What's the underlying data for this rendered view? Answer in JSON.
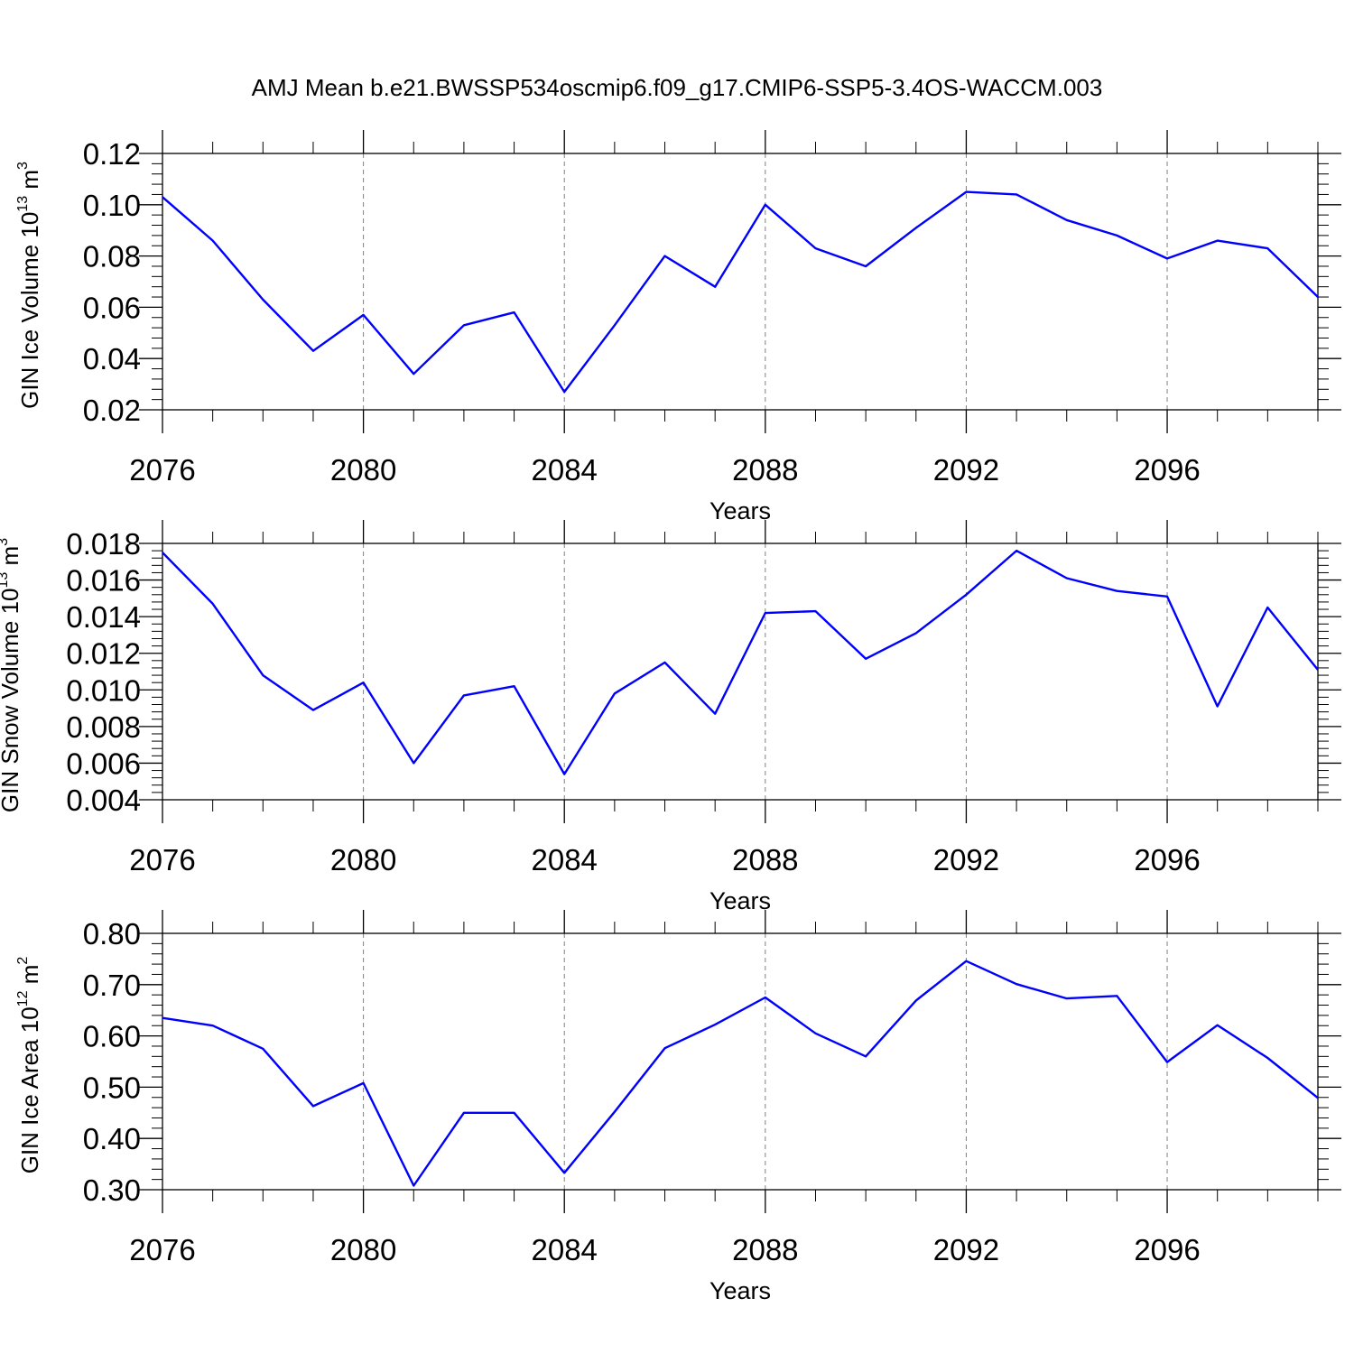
{
  "title": "AMJ Mean b.e21.BWSSP534oscmip6.f09_g17.CMIP6-SSP5-3.4OS-WACCM.003",
  "colors": {
    "series": "#0000ff",
    "axis": "#000000",
    "grid": "#808080"
  },
  "chart_data": [
    {
      "type": "line",
      "xlabel": "Years",
      "ylabel": {
        "text": "GIN Ice Volume 10",
        "sup": "13",
        "mid": " m",
        "sup2": "3"
      },
      "xlim": [
        2076,
        2099
      ],
      "ylim": [
        0.02,
        0.12
      ],
      "x_ticks": [
        2076,
        2080,
        2084,
        2088,
        2092,
        2096
      ],
      "x_tick_labels": [
        "2076",
        "2080",
        "2084",
        "2088",
        "2092",
        "2096"
      ],
      "y_ticks": [
        0.02,
        0.04,
        0.06,
        0.08,
        0.1,
        0.12
      ],
      "y_tick_labels": [
        "0.02",
        "0.04",
        "0.06",
        "0.08",
        "0.10",
        "0.12"
      ],
      "grid": "vertical dashed at major x ticks",
      "x": [
        2076,
        2077,
        2078,
        2079,
        2080,
        2081,
        2082,
        2083,
        2084,
        2085,
        2086,
        2087,
        2088,
        2089,
        2090,
        2091,
        2092,
        2093,
        2094,
        2095,
        2096,
        2097,
        2098,
        2099
      ],
      "values": [
        0.103,
        0.086,
        0.063,
        0.043,
        0.057,
        0.034,
        0.053,
        0.058,
        0.027,
        0.053,
        0.08,
        0.068,
        0.1,
        0.083,
        0.076,
        0.091,
        0.105,
        0.104,
        0.094,
        0.088,
        0.079,
        0.086,
        0.083,
        0.064
      ]
    },
    {
      "type": "line",
      "xlabel": "Years",
      "ylabel": {
        "text": "GIN Snow Volume 10",
        "sup": "13",
        "mid": " m",
        "sup2": "3"
      },
      "xlim": [
        2076,
        2099
      ],
      "ylim": [
        0.004,
        0.018
      ],
      "x_ticks": [
        2076,
        2080,
        2084,
        2088,
        2092,
        2096
      ],
      "x_tick_labels": [
        "2076",
        "2080",
        "2084",
        "2088",
        "2092",
        "2096"
      ],
      "y_ticks": [
        0.004,
        0.006,
        0.008,
        0.01,
        0.012,
        0.014,
        0.016,
        0.018
      ],
      "y_tick_labels": [
        "0.004",
        "0.006",
        "0.008",
        "0.010",
        "0.012",
        "0.014",
        "0.016",
        "0.018"
      ],
      "grid": "vertical dashed at major x ticks",
      "x": [
        2076,
        2077,
        2078,
        2079,
        2080,
        2081,
        2082,
        2083,
        2084,
        2085,
        2086,
        2087,
        2088,
        2089,
        2090,
        2091,
        2092,
        2093,
        2094,
        2095,
        2096,
        2097,
        2098,
        2099
      ],
      "values": [
        0.0175,
        0.0147,
        0.0108,
        0.0089,
        0.0104,
        0.006,
        0.0097,
        0.0102,
        0.0054,
        0.0098,
        0.0115,
        0.0087,
        0.0142,
        0.0143,
        0.0117,
        0.0131,
        0.0152,
        0.0176,
        0.0161,
        0.0154,
        0.0151,
        0.0091,
        0.0145,
        0.0111
      ]
    },
    {
      "type": "line",
      "xlabel": "Years",
      "ylabel": {
        "text": "GIN Ice Area 10",
        "sup": "12",
        "mid": " m",
        "sup2": "2"
      },
      "xlim": [
        2076,
        2099
      ],
      "ylim": [
        0.3,
        0.8
      ],
      "x_ticks": [
        2076,
        2080,
        2084,
        2088,
        2092,
        2096
      ],
      "x_tick_labels": [
        "2076",
        "2080",
        "2084",
        "2088",
        "2092",
        "2096"
      ],
      "y_ticks": [
        0.3,
        0.4,
        0.5,
        0.6,
        0.7,
        0.8
      ],
      "y_tick_labels": [
        "0.30",
        "0.40",
        "0.50",
        "0.60",
        "0.70",
        "0.80"
      ],
      "grid": "vertical dashed at major x ticks",
      "x": [
        2076,
        2077,
        2078,
        2079,
        2080,
        2081,
        2082,
        2083,
        2084,
        2085,
        2086,
        2087,
        2088,
        2089,
        2090,
        2091,
        2092,
        2093,
        2094,
        2095,
        2096,
        2097,
        2098,
        2099
      ],
      "values": [
        0.635,
        0.62,
        0.575,
        0.463,
        0.508,
        0.308,
        0.45,
        0.45,
        0.333,
        0.452,
        0.576,
        0.622,
        0.675,
        0.605,
        0.56,
        0.669,
        0.746,
        0.701,
        0.673,
        0.678,
        0.549,
        0.621,
        0.557,
        0.479
      ]
    }
  ]
}
